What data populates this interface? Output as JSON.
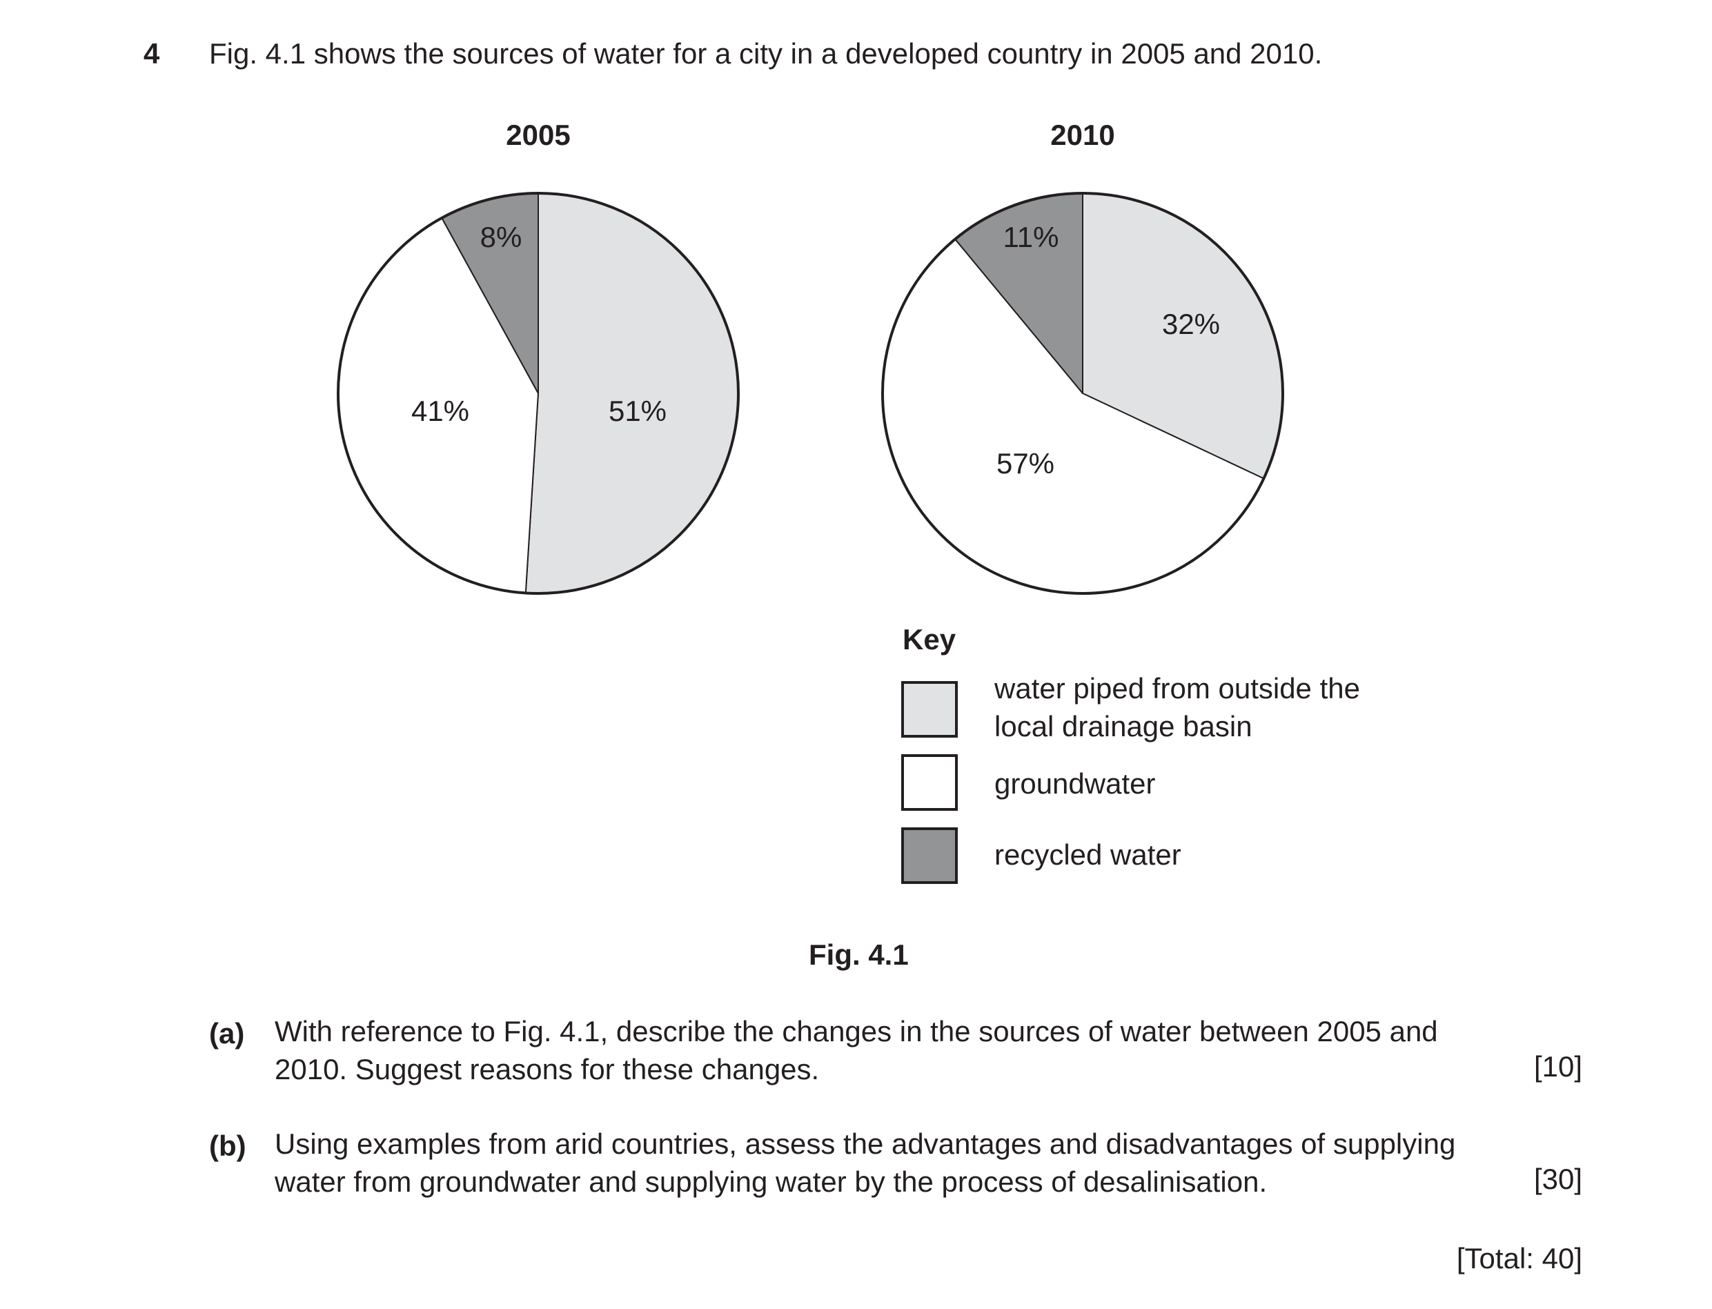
{
  "question": {
    "number": "4",
    "intro": "Fig. 4.1 shows the sources of water for a city in a developed country in 2005 and 2010."
  },
  "colors": {
    "piped": "#e1e2e3",
    "groundwater": "#ffffff",
    "recycled": "#939495",
    "stroke": "#231f20"
  },
  "chart_data": [
    {
      "type": "pie",
      "title": "2005",
      "slices": [
        {
          "category": "water piped from outside the local drainage basin",
          "value": 51,
          "label": "51%"
        },
        {
          "category": "groundwater",
          "value": 41,
          "label": "41%"
        },
        {
          "category": "recycled water",
          "value": 8,
          "label": "8%"
        }
      ]
    },
    {
      "type": "pie",
      "title": "2010",
      "slices": [
        {
          "category": "water piped from outside the local drainage basin",
          "value": 32,
          "label": "32%"
        },
        {
          "category": "groundwater",
          "value": 57,
          "label": "57%"
        },
        {
          "category": "recycled water",
          "value": 11,
          "label": "11%"
        }
      ]
    }
  ],
  "key": {
    "title": "Key",
    "items": [
      {
        "line1": "water piped from outside the",
        "line2": "local drainage basin"
      },
      {
        "line1": "groundwater"
      },
      {
        "line1": "recycled water"
      }
    ]
  },
  "figure_caption": "Fig. 4.1",
  "parts": [
    {
      "label": "(a)",
      "line1": "With reference to Fig. 4.1, describe the changes in the sources of water between 2005 and",
      "line2": "2010. Suggest reasons for these changes.",
      "marks": "[10]"
    },
    {
      "label": "(b)",
      "line1": "Using examples from arid countries, assess the advantages and disadvantages of supplying",
      "line2": "water from groundwater and supplying water by the process of desalinisation.",
      "marks": "[30]"
    }
  ],
  "total": "[Total: 40]"
}
